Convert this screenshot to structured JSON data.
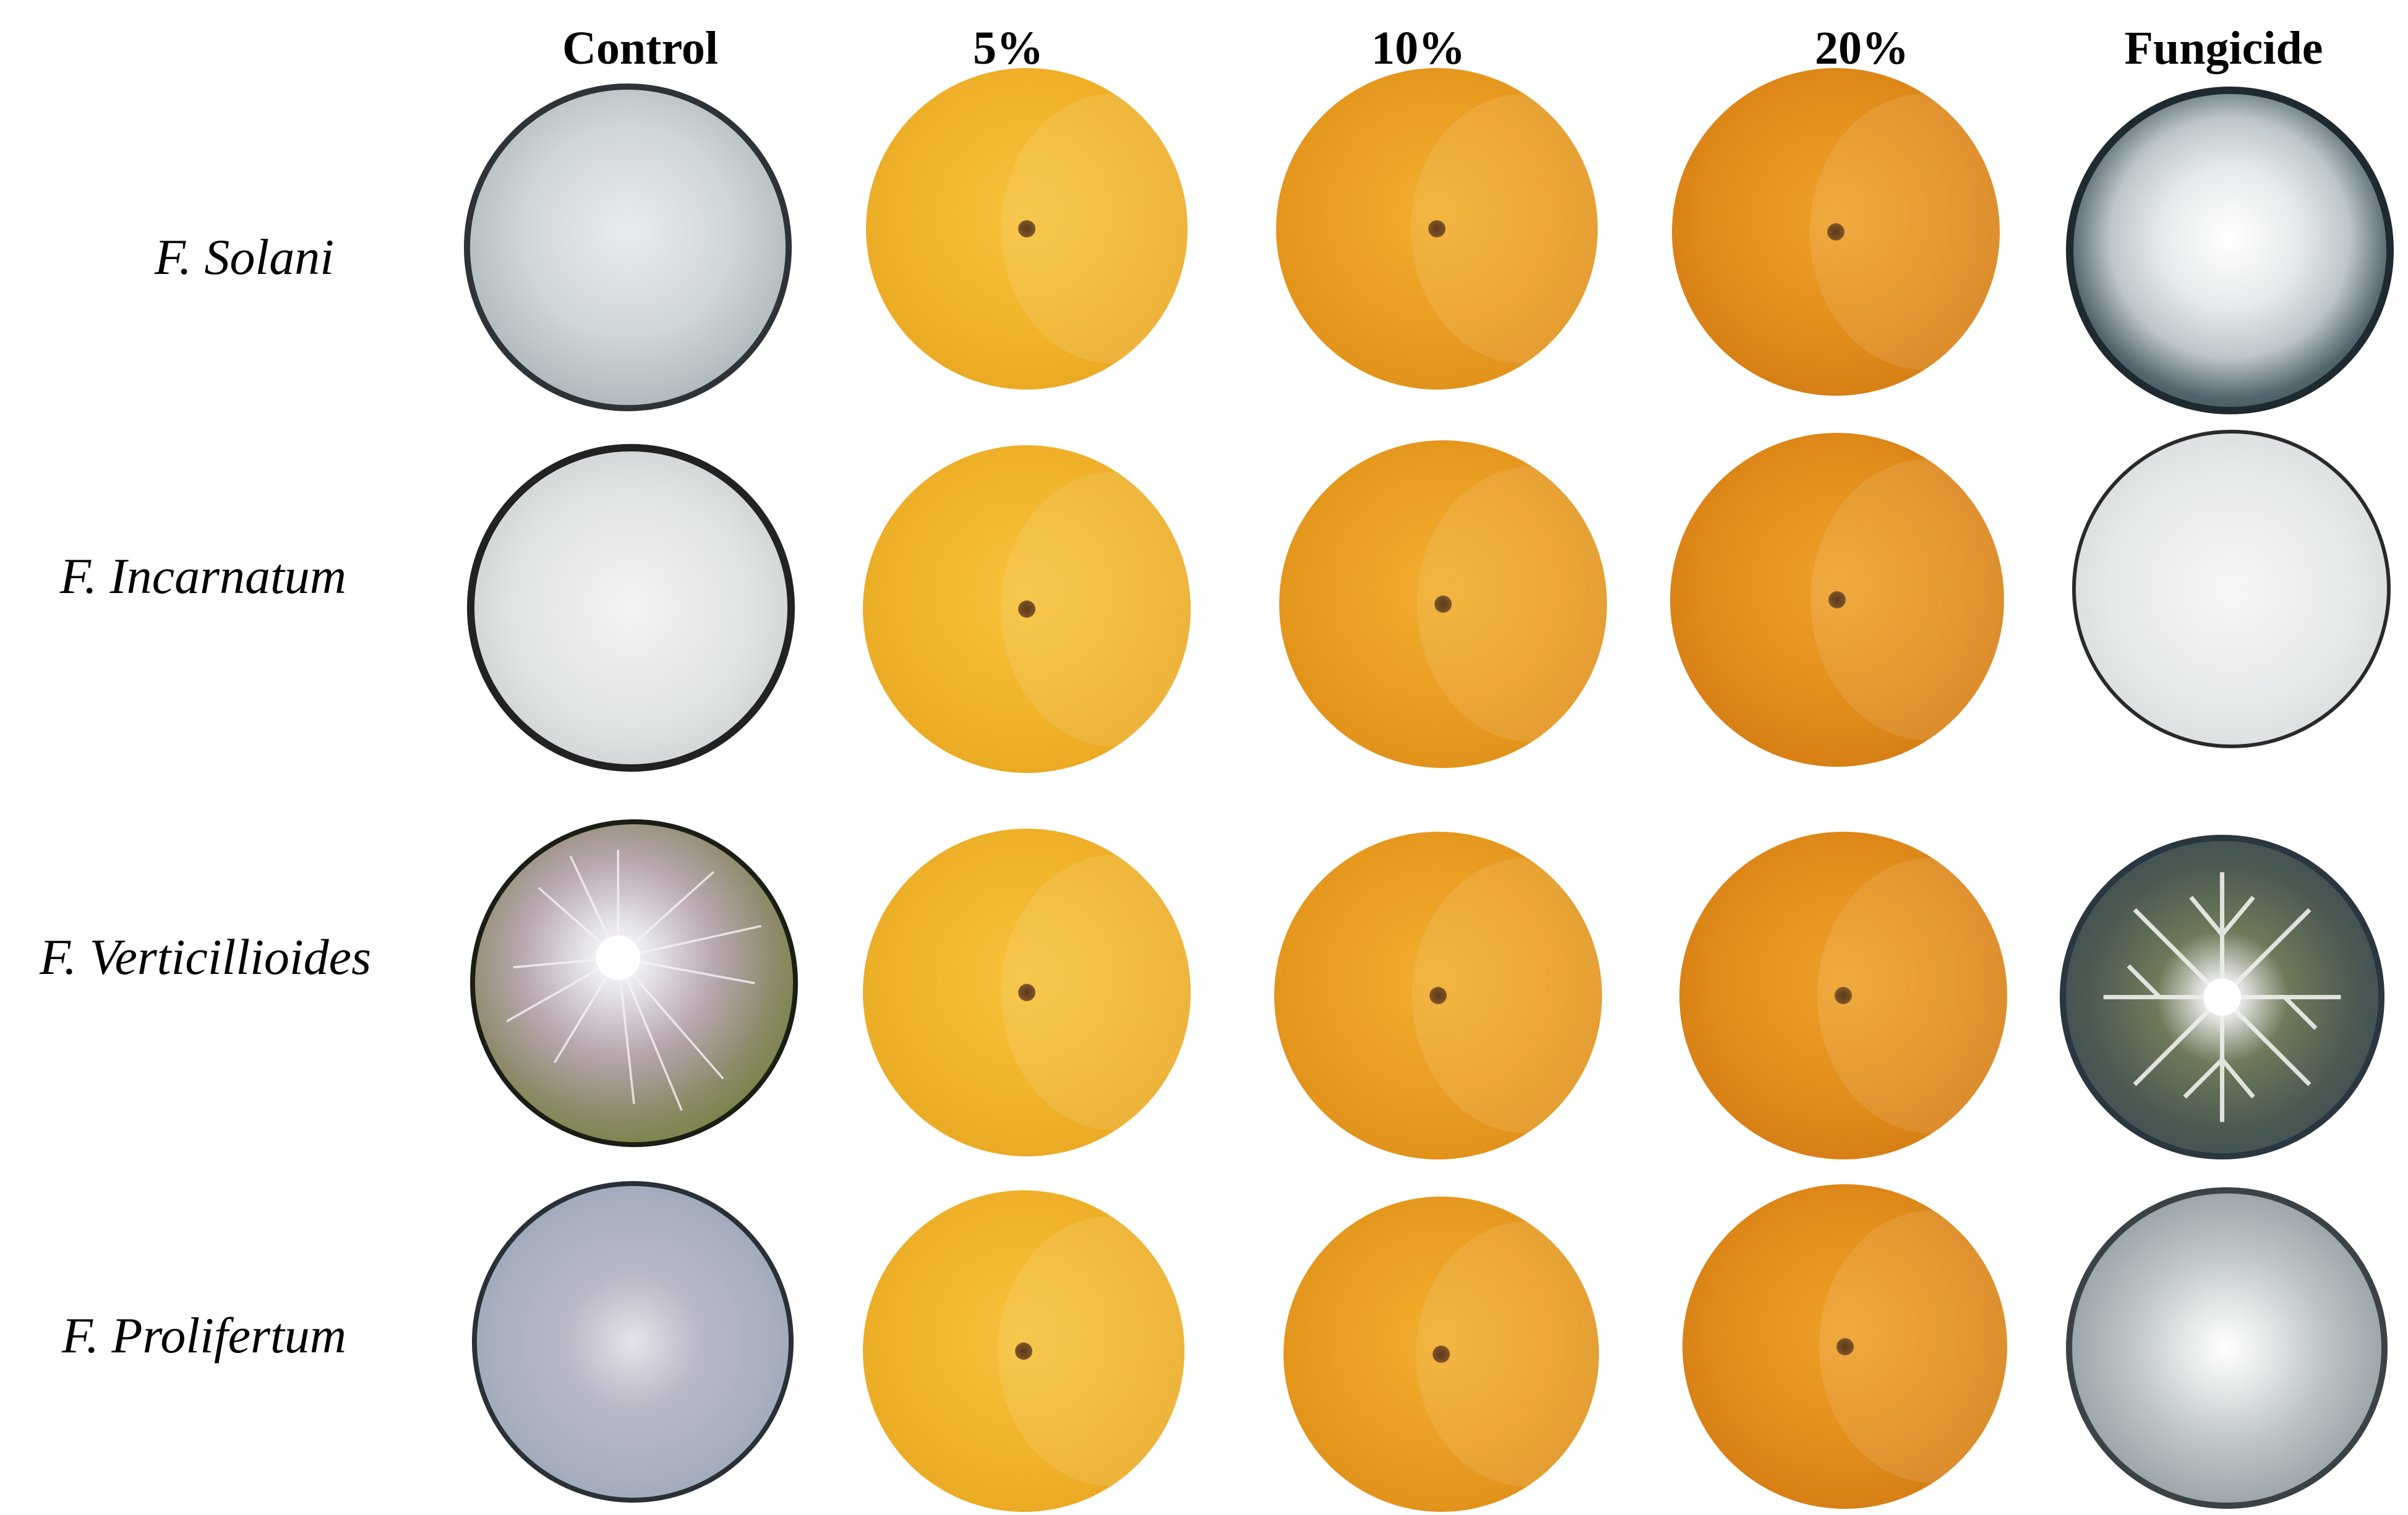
{
  "columns": [
    "Control",
    "5%",
    "10%",
    "20%",
    "Fungicide"
  ],
  "rows": [
    {
      "label": "F. Solani"
    },
    {
      "label": "F. Incarnatum"
    },
    {
      "label": "F. Verticillioides"
    },
    {
      "label": "F. Prolifertum"
    }
  ],
  "colors": {
    "agar_5": "#f1b52c",
    "agar_10": "#ea9e22",
    "agar_20": "#e38f1c",
    "mycelium": "#e4e8ea",
    "plate_rim": "#2d3336"
  }
}
